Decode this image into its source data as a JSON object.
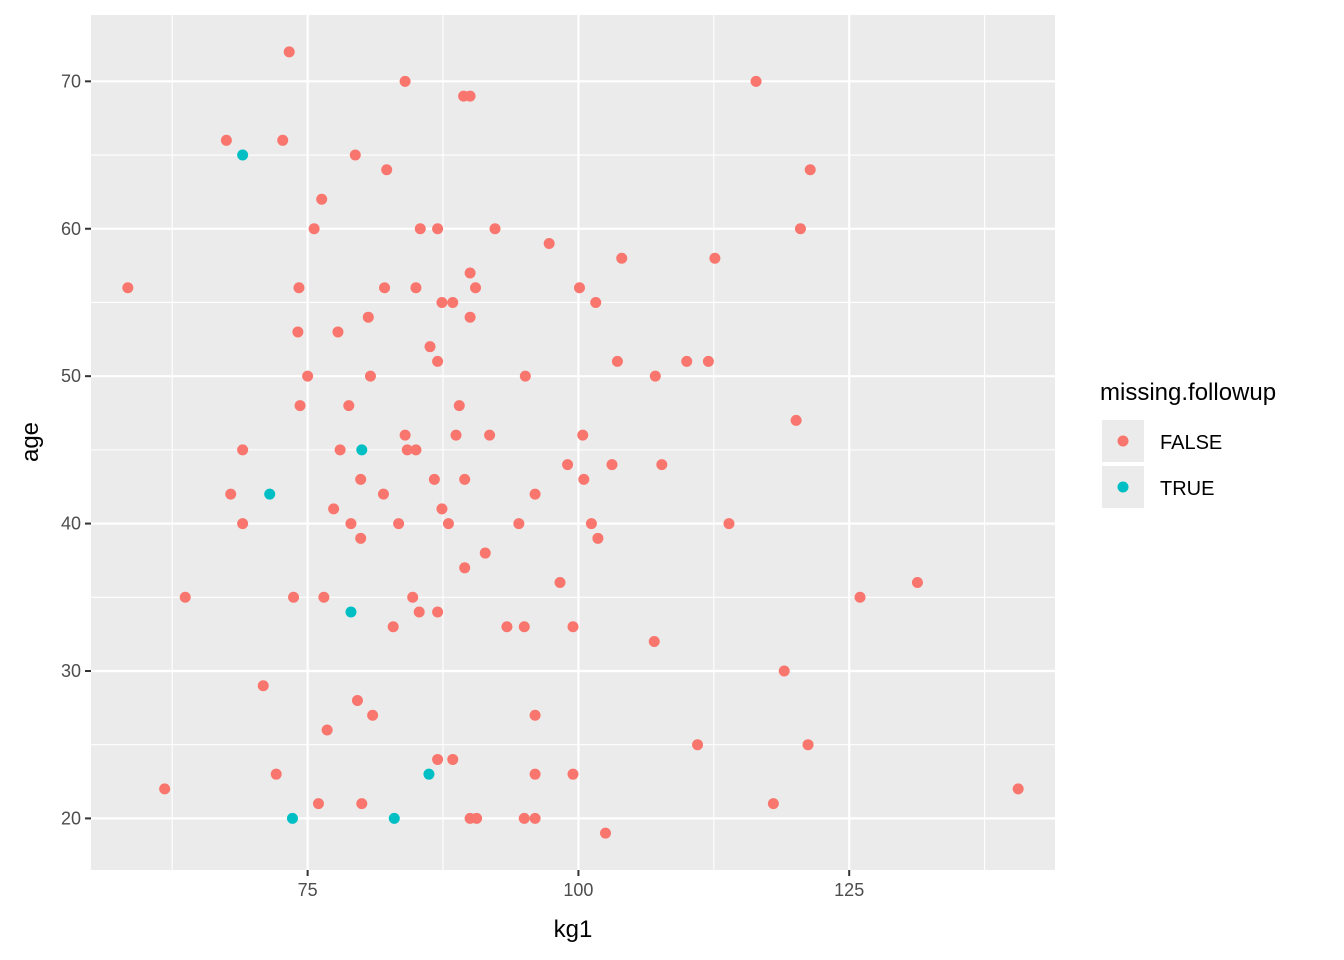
{
  "chart_data": {
    "type": "scatter",
    "title": "",
    "xlabel": "kg1",
    "ylabel": "age",
    "xlim": [
      55,
      144
    ],
    "ylim": [
      16.5,
      74.5
    ],
    "x_ticks": [
      75,
      100,
      125
    ],
    "x_tick_labels": [
      "75",
      "100",
      "125"
    ],
    "y_ticks": [
      20,
      30,
      40,
      50,
      60,
      70
    ],
    "y_tick_labels": [
      "20",
      "30",
      "40",
      "50",
      "60",
      "70"
    ],
    "grid": true,
    "legend": {
      "title": "missing.followup",
      "position": "right"
    },
    "colors": {
      "FALSE": "#f8766d",
      "TRUE": "#00bfc4",
      "panel": "#ebebeb",
      "grid": "#ffffff"
    },
    "series": [
      {
        "name": "FALSE",
        "points": [
          [
            73.3,
            72
          ],
          [
            84.0,
            70
          ],
          [
            89.4,
            69
          ],
          [
            90.0,
            69
          ],
          [
            116.4,
            70
          ],
          [
            67.5,
            66
          ],
          [
            72.7,
            66
          ],
          [
            79.4,
            65
          ],
          [
            82.3,
            64
          ],
          [
            121.4,
            64
          ],
          [
            76.3,
            62
          ],
          [
            75.6,
            60
          ],
          [
            85.4,
            60
          ],
          [
            87.0,
            60
          ],
          [
            92.3,
            60
          ],
          [
            120.5,
            60
          ],
          [
            97.3,
            59
          ],
          [
            104.0,
            58
          ],
          [
            112.6,
            58
          ],
          [
            90.0,
            57
          ],
          [
            58.4,
            56
          ],
          [
            74.2,
            56
          ],
          [
            82.1,
            56
          ],
          [
            85.0,
            56
          ],
          [
            90.5,
            56
          ],
          [
            100.1,
            56
          ],
          [
            87.4,
            55
          ],
          [
            88.4,
            55
          ],
          [
            101.6,
            55
          ],
          [
            80.6,
            54
          ],
          [
            90.0,
            54
          ],
          [
            74.1,
            53
          ],
          [
            77.8,
            53
          ],
          [
            86.3,
            52
          ],
          [
            87.0,
            51
          ],
          [
            103.6,
            51
          ],
          [
            110.0,
            51
          ],
          [
            112.0,
            51
          ],
          [
            75.0,
            50
          ],
          [
            80.8,
            50
          ],
          [
            95.1,
            50
          ],
          [
            107.1,
            50
          ],
          [
            74.3,
            48
          ],
          [
            78.8,
            48
          ],
          [
            89.0,
            48
          ],
          [
            120.1,
            47
          ],
          [
            84.0,
            46
          ],
          [
            88.7,
            46
          ],
          [
            91.8,
            46
          ],
          [
            100.4,
            46
          ],
          [
            69.0,
            45
          ],
          [
            78.0,
            45
          ],
          [
            84.2,
            45
          ],
          [
            85.0,
            45
          ],
          [
            99.0,
            44
          ],
          [
            103.1,
            44
          ],
          [
            107.7,
            44
          ],
          [
            79.9,
            43
          ],
          [
            86.7,
            43
          ],
          [
            89.5,
            43
          ],
          [
            100.5,
            43
          ],
          [
            67.9,
            42
          ],
          [
            82.0,
            42
          ],
          [
            96.0,
            42
          ],
          [
            77.4,
            41
          ],
          [
            87.4,
            41
          ],
          [
            69.0,
            40
          ],
          [
            79.0,
            40
          ],
          [
            83.4,
            40
          ],
          [
            88.0,
            40
          ],
          [
            94.5,
            40
          ],
          [
            101.2,
            40
          ],
          [
            113.9,
            40
          ],
          [
            79.9,
            39
          ],
          [
            101.8,
            39
          ],
          [
            91.4,
            38
          ],
          [
            89.5,
            37
          ],
          [
            98.3,
            36
          ],
          [
            131.3,
            36
          ],
          [
            63.7,
            35
          ],
          [
            73.7,
            35
          ],
          [
            76.5,
            35
          ],
          [
            84.7,
            35
          ],
          [
            126.0,
            35
          ],
          [
            85.3,
            34
          ],
          [
            87.0,
            34
          ],
          [
            82.9,
            33
          ],
          [
            93.4,
            33
          ],
          [
            95.0,
            33
          ],
          [
            99.5,
            33
          ],
          [
            107.0,
            32
          ],
          [
            119.0,
            30
          ],
          [
            70.9,
            29
          ],
          [
            79.6,
            28
          ],
          [
            81.0,
            27
          ],
          [
            96.0,
            27
          ],
          [
            76.8,
            26
          ],
          [
            111.0,
            25
          ],
          [
            121.2,
            25
          ],
          [
            87.0,
            24
          ],
          [
            88.4,
            24
          ],
          [
            72.1,
            23
          ],
          [
            96.0,
            23
          ],
          [
            99.5,
            23
          ],
          [
            61.8,
            22
          ],
          [
            140.6,
            22
          ],
          [
            76.0,
            21
          ],
          [
            80.0,
            21
          ],
          [
            118.0,
            21
          ],
          [
            90.0,
            20
          ],
          [
            90.6,
            20
          ],
          [
            95.0,
            20
          ],
          [
            96.0,
            20
          ],
          [
            102.5,
            19
          ]
        ]
      },
      {
        "name": "TRUE",
        "points": [
          [
            69.0,
            65
          ],
          [
            80.0,
            45
          ],
          [
            71.5,
            42
          ],
          [
            79.0,
            34
          ],
          [
            86.2,
            23
          ],
          [
            73.6,
            20
          ],
          [
            83.0,
            20
          ]
        ]
      }
    ]
  }
}
